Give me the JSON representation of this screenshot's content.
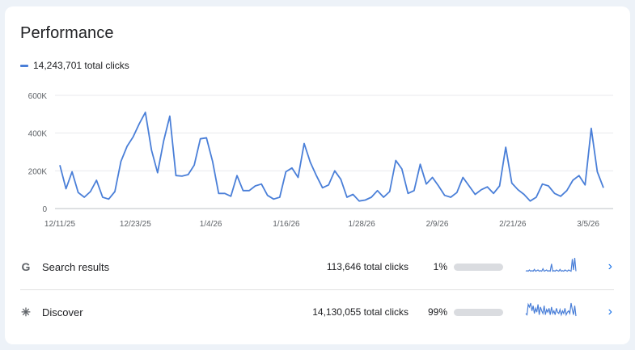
{
  "card": {
    "title": "Performance",
    "legend": "14,243,701 total clicks"
  },
  "colors": {
    "line": "#4a7fd8",
    "grid": "#e8eaed",
    "bar_track": "#dadce0",
    "bar_fill_search": "#dadce0",
    "bar_fill_discover": "#4a7fd8",
    "axis_text": "#5f6368"
  },
  "chart_data": {
    "type": "line",
    "x_tick_labels": [
      "12/11/25",
      "12/23/25",
      "1/4/26",
      "1/16/26",
      "1/28/26",
      "2/9/26",
      "2/21/26",
      "3/5/26"
    ],
    "y_tick_labels": [
      "0",
      "200K",
      "400K",
      "600K"
    ],
    "ylim": [
      0,
      600000
    ],
    "grid": true,
    "series": [
      {
        "values": [
          230000,
          105000,
          195000,
          85000,
          60000,
          90000,
          150000,
          60000,
          50000,
          90000,
          250000,
          330000,
          380000,
          450000,
          510000,
          310000,
          190000,
          360000,
          490000,
          175000,
          172000,
          180000,
          230000,
          370000,
          375000,
          250000,
          80000,
          80000,
          65000,
          175000,
          95000,
          95000,
          120000,
          130000,
          70000,
          50000,
          60000,
          195000,
          215000,
          165000,
          345000,
          245000,
          175000,
          110000,
          125000,
          200000,
          155000,
          60000,
          75000,
          40000,
          45000,
          60000,
          95000,
          60000,
          90000,
          255000,
          210000,
          80000,
          95000,
          235000,
          130000,
          165000,
          120000,
          70000,
          60000,
          85000,
          165000,
          120000,
          75000,
          100000,
          115000,
          80000,
          120000,
          325000,
          135000,
          100000,
          75000,
          40000,
          60000,
          130000,
          120000,
          80000,
          65000,
          95000,
          150000,
          175000,
          125000,
          425000,
          195000,
          110000
        ]
      }
    ]
  },
  "rows": [
    {
      "icon": "google-g-icon",
      "icon_glyph": "G",
      "label": "Search results",
      "clicks": "113,646 total clicks",
      "pct": "1%",
      "share": 0.01,
      "spark": [
        10,
        11,
        10,
        12,
        10,
        11,
        10,
        13,
        10,
        11,
        12,
        10,
        11,
        10,
        14,
        10,
        11,
        12,
        10,
        11,
        10,
        22,
        10,
        11,
        10,
        12,
        11,
        10,
        13,
        10,
        11,
        10,
        12,
        11,
        10,
        12,
        11,
        10,
        30,
        12,
        32,
        10
      ]
    },
    {
      "icon": "asterisk-icon",
      "icon_glyph": "✳",
      "label": "Discover",
      "clicks": "14,130,055 total clicks",
      "pct": "99%",
      "share": 0.99,
      "spark": [
        14,
        12,
        28,
        24,
        30,
        18,
        26,
        14,
        22,
        16,
        28,
        12,
        24,
        18,
        14,
        26,
        12,
        20,
        16,
        22,
        12,
        24,
        14,
        18,
        12,
        22,
        16,
        14,
        20,
        12,
        18,
        14,
        22,
        12,
        16,
        18,
        14,
        30,
        20,
        12,
        26,
        10
      ]
    }
  ]
}
